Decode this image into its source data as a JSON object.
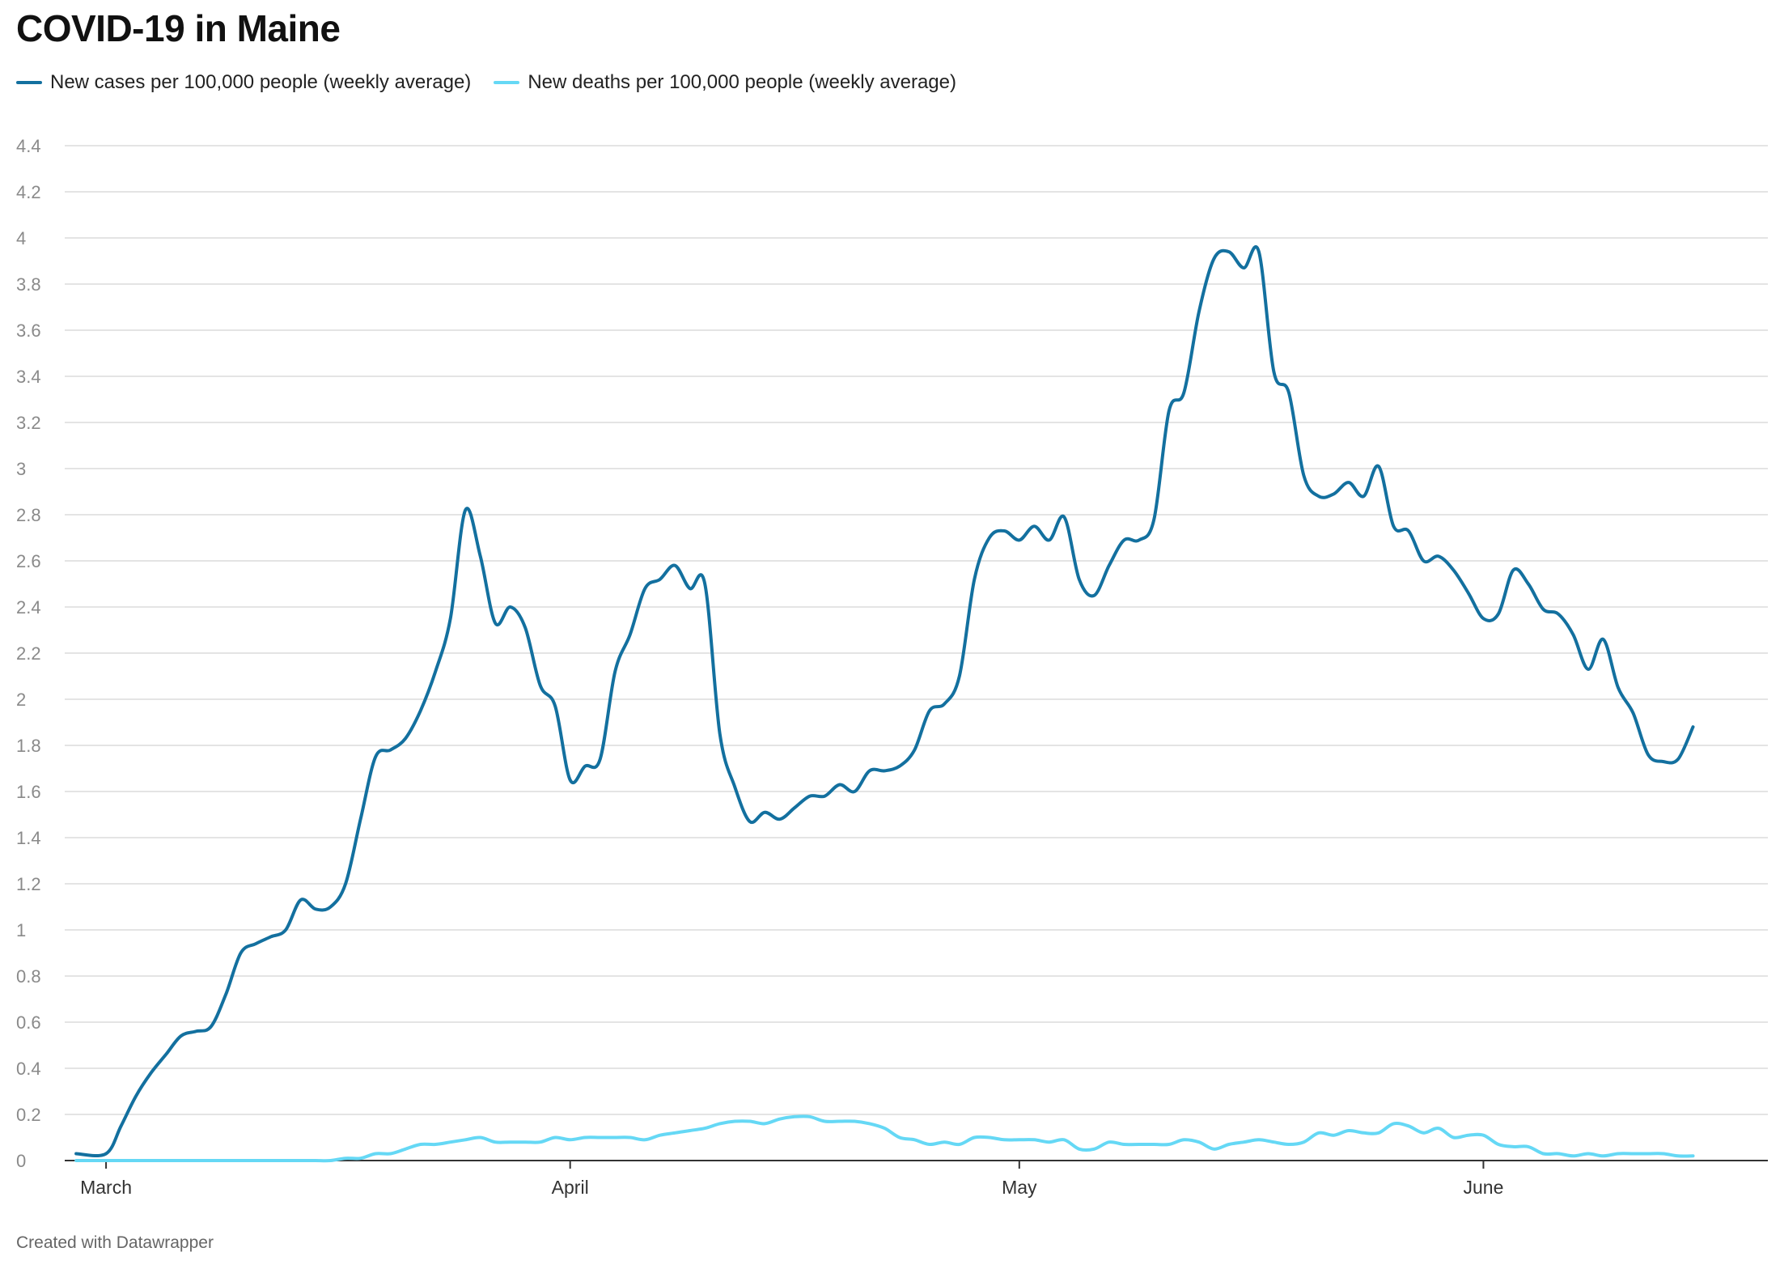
{
  "chart_data": {
    "type": "line",
    "title": "COVID-19 in Maine",
    "xlabel": "",
    "ylabel": "",
    "x_range": [
      "2020-03-01",
      "2020-06-20"
    ],
    "x_ticks": [
      {
        "date": "2020-03-01",
        "label": "March"
      },
      {
        "date": "2020-04-01",
        "label": "April"
      },
      {
        "date": "2020-05-01",
        "label": "May"
      },
      {
        "date": "2020-06-01",
        "label": "June"
      }
    ],
    "ylim": [
      0,
      4.4
    ],
    "y_ticks": [
      0,
      0.2,
      0.4,
      0.6,
      0.8,
      1,
      1.2,
      1.4,
      1.6,
      1.8,
      2,
      2.2,
      2.4,
      2.6,
      2.8,
      3,
      3.2,
      3.4,
      3.6,
      3.8,
      4,
      4.2,
      4.4
    ],
    "grid": "horizontal",
    "legend_position": "top-left",
    "series": [
      {
        "name": "New cases per 100,000 people (weekly average)",
        "color": "#13709f",
        "points": [
          [
            "2020-02-28",
            0.03
          ],
          [
            "2020-03-01",
            0.03
          ],
          [
            "2020-03-02",
            0.15
          ],
          [
            "2020-03-03",
            0.28
          ],
          [
            "2020-03-04",
            0.38
          ],
          [
            "2020-03-05",
            0.46
          ],
          [
            "2020-03-06",
            0.54
          ],
          [
            "2020-03-07",
            0.56
          ],
          [
            "2020-03-08",
            0.58
          ],
          [
            "2020-03-09",
            0.72
          ],
          [
            "2020-03-10",
            0.9
          ],
          [
            "2020-03-11",
            0.94
          ],
          [
            "2020-03-12",
            0.97
          ],
          [
            "2020-03-13",
            1.0
          ],
          [
            "2020-03-14",
            1.13
          ],
          [
            "2020-03-15",
            1.09
          ],
          [
            "2020-03-16",
            1.1
          ],
          [
            "2020-03-17",
            1.2
          ],
          [
            "2020-03-18",
            1.48
          ],
          [
            "2020-03-19",
            1.75
          ],
          [
            "2020-03-20",
            1.78
          ],
          [
            "2020-03-21",
            1.83
          ],
          [
            "2020-03-22",
            1.95
          ],
          [
            "2020-03-23",
            2.12
          ],
          [
            "2020-03-24",
            2.35
          ],
          [
            "2020-03-25",
            2.82
          ],
          [
            "2020-03-26",
            2.62
          ],
          [
            "2020-03-27",
            2.33
          ],
          [
            "2020-03-28",
            2.4
          ],
          [
            "2020-03-29",
            2.31
          ],
          [
            "2020-03-30",
            2.06
          ],
          [
            "2020-03-31",
            1.97
          ],
          [
            "2020-04-01",
            1.65
          ],
          [
            "2020-04-02",
            1.71
          ],
          [
            "2020-04-03",
            1.74
          ],
          [
            "2020-04-04",
            2.12
          ],
          [
            "2020-04-05",
            2.28
          ],
          [
            "2020-04-06",
            2.48
          ],
          [
            "2020-04-07",
            2.52
          ],
          [
            "2020-04-08",
            2.58
          ],
          [
            "2020-04-09",
            2.48
          ],
          [
            "2020-04-10",
            2.5
          ],
          [
            "2020-04-11",
            1.85
          ],
          [
            "2020-04-12",
            1.62
          ],
          [
            "2020-04-13",
            1.47
          ],
          [
            "2020-04-14",
            1.51
          ],
          [
            "2020-04-15",
            1.48
          ],
          [
            "2020-04-16",
            1.53
          ],
          [
            "2020-04-17",
            1.58
          ],
          [
            "2020-04-18",
            1.58
          ],
          [
            "2020-04-19",
            1.63
          ],
          [
            "2020-04-20",
            1.6
          ],
          [
            "2020-04-21",
            1.69
          ],
          [
            "2020-04-22",
            1.69
          ],
          [
            "2020-04-23",
            1.71
          ],
          [
            "2020-04-24",
            1.78
          ],
          [
            "2020-04-25",
            1.95
          ],
          [
            "2020-04-26",
            1.98
          ],
          [
            "2020-04-27",
            2.1
          ],
          [
            "2020-04-28",
            2.52
          ],
          [
            "2020-04-29",
            2.7
          ],
          [
            "2020-04-30",
            2.73
          ],
          [
            "2020-05-01",
            2.69
          ],
          [
            "2020-05-02",
            2.75
          ],
          [
            "2020-05-03",
            2.69
          ],
          [
            "2020-05-04",
            2.79
          ],
          [
            "2020-05-05",
            2.52
          ],
          [
            "2020-05-06",
            2.45
          ],
          [
            "2020-05-07",
            2.58
          ],
          [
            "2020-05-08",
            2.69
          ],
          [
            "2020-05-09",
            2.69
          ],
          [
            "2020-05-10",
            2.78
          ],
          [
            "2020-05-11",
            3.25
          ],
          [
            "2020-05-12",
            3.33
          ],
          [
            "2020-05-13",
            3.68
          ],
          [
            "2020-05-14",
            3.91
          ],
          [
            "2020-05-15",
            3.94
          ],
          [
            "2020-05-16",
            3.87
          ],
          [
            "2020-05-17",
            3.94
          ],
          [
            "2020-05-18",
            3.42
          ],
          [
            "2020-05-19",
            3.33
          ],
          [
            "2020-05-20",
            2.97
          ],
          [
            "2020-05-21",
            2.88
          ],
          [
            "2020-05-22",
            2.89
          ],
          [
            "2020-05-23",
            2.94
          ],
          [
            "2020-05-24",
            2.88
          ],
          [
            "2020-05-25",
            3.01
          ],
          [
            "2020-05-26",
            2.75
          ],
          [
            "2020-05-27",
            2.73
          ],
          [
            "2020-05-28",
            2.6
          ],
          [
            "2020-05-29",
            2.62
          ],
          [
            "2020-05-30",
            2.56
          ],
          [
            "2020-05-31",
            2.46
          ],
          [
            "2020-06-01",
            2.35
          ],
          [
            "2020-06-02",
            2.37
          ],
          [
            "2020-06-03",
            2.56
          ],
          [
            "2020-06-04",
            2.5
          ],
          [
            "2020-06-05",
            2.39
          ],
          [
            "2020-06-06",
            2.37
          ],
          [
            "2020-06-07",
            2.28
          ],
          [
            "2020-06-08",
            2.13
          ],
          [
            "2020-06-09",
            2.26
          ],
          [
            "2020-06-10",
            2.05
          ],
          [
            "2020-06-11",
            1.94
          ],
          [
            "2020-06-12",
            1.76
          ],
          [
            "2020-06-13",
            1.73
          ],
          [
            "2020-06-14",
            1.74
          ],
          [
            "2020-06-15",
            1.88
          ]
        ]
      },
      {
        "name": "New deaths per 100,000 people (weekly average)",
        "color": "#65d8f5",
        "points": [
          [
            "2020-02-28",
            0.0
          ],
          [
            "2020-03-01",
            0.0
          ],
          [
            "2020-03-02",
            0.0
          ],
          [
            "2020-03-03",
            0.0
          ],
          [
            "2020-03-04",
            0.0
          ],
          [
            "2020-03-05",
            0.0
          ],
          [
            "2020-03-06",
            0.0
          ],
          [
            "2020-03-07",
            0.0
          ],
          [
            "2020-03-08",
            0.0
          ],
          [
            "2020-03-09",
            0.0
          ],
          [
            "2020-03-10",
            0.0
          ],
          [
            "2020-03-11",
            0.0
          ],
          [
            "2020-03-12",
            0.0
          ],
          [
            "2020-03-13",
            0.0
          ],
          [
            "2020-03-14",
            0.0
          ],
          [
            "2020-03-15",
            0.0
          ],
          [
            "2020-03-16",
            0.0
          ],
          [
            "2020-03-17",
            0.01
          ],
          [
            "2020-03-18",
            0.01
          ],
          [
            "2020-03-19",
            0.03
          ],
          [
            "2020-03-20",
            0.03
          ],
          [
            "2020-03-21",
            0.05
          ],
          [
            "2020-03-22",
            0.07
          ],
          [
            "2020-03-23",
            0.07
          ],
          [
            "2020-03-24",
            0.08
          ],
          [
            "2020-03-25",
            0.09
          ],
          [
            "2020-03-26",
            0.1
          ],
          [
            "2020-03-27",
            0.08
          ],
          [
            "2020-03-28",
            0.08
          ],
          [
            "2020-03-29",
            0.08
          ],
          [
            "2020-03-30",
            0.08
          ],
          [
            "2020-03-31",
            0.1
          ],
          [
            "2020-04-01",
            0.09
          ],
          [
            "2020-04-02",
            0.1
          ],
          [
            "2020-04-03",
            0.1
          ],
          [
            "2020-04-04",
            0.1
          ],
          [
            "2020-04-05",
            0.1
          ],
          [
            "2020-04-06",
            0.09
          ],
          [
            "2020-04-07",
            0.11
          ],
          [
            "2020-04-08",
            0.12
          ],
          [
            "2020-04-09",
            0.13
          ],
          [
            "2020-04-10",
            0.14
          ],
          [
            "2020-04-11",
            0.16
          ],
          [
            "2020-04-12",
            0.17
          ],
          [
            "2020-04-13",
            0.17
          ],
          [
            "2020-04-14",
            0.16
          ],
          [
            "2020-04-15",
            0.18
          ],
          [
            "2020-04-16",
            0.19
          ],
          [
            "2020-04-17",
            0.19
          ],
          [
            "2020-04-18",
            0.17
          ],
          [
            "2020-04-19",
            0.17
          ],
          [
            "2020-04-20",
            0.17
          ],
          [
            "2020-04-21",
            0.16
          ],
          [
            "2020-04-22",
            0.14
          ],
          [
            "2020-04-23",
            0.1
          ],
          [
            "2020-04-24",
            0.09
          ],
          [
            "2020-04-25",
            0.07
          ],
          [
            "2020-04-26",
            0.08
          ],
          [
            "2020-04-27",
            0.07
          ],
          [
            "2020-04-28",
            0.1
          ],
          [
            "2020-04-29",
            0.1
          ],
          [
            "2020-04-30",
            0.09
          ],
          [
            "2020-05-01",
            0.09
          ],
          [
            "2020-05-02",
            0.09
          ],
          [
            "2020-05-03",
            0.08
          ],
          [
            "2020-05-04",
            0.09
          ],
          [
            "2020-05-05",
            0.05
          ],
          [
            "2020-05-06",
            0.05
          ],
          [
            "2020-05-07",
            0.08
          ],
          [
            "2020-05-08",
            0.07
          ],
          [
            "2020-05-09",
            0.07
          ],
          [
            "2020-05-10",
            0.07
          ],
          [
            "2020-05-11",
            0.07
          ],
          [
            "2020-05-12",
            0.09
          ],
          [
            "2020-05-13",
            0.08
          ],
          [
            "2020-05-14",
            0.05
          ],
          [
            "2020-05-15",
            0.07
          ],
          [
            "2020-05-16",
            0.08
          ],
          [
            "2020-05-17",
            0.09
          ],
          [
            "2020-05-18",
            0.08
          ],
          [
            "2020-05-19",
            0.07
          ],
          [
            "2020-05-20",
            0.08
          ],
          [
            "2020-05-21",
            0.12
          ],
          [
            "2020-05-22",
            0.11
          ],
          [
            "2020-05-23",
            0.13
          ],
          [
            "2020-05-24",
            0.12
          ],
          [
            "2020-05-25",
            0.12
          ],
          [
            "2020-05-26",
            0.16
          ],
          [
            "2020-05-27",
            0.15
          ],
          [
            "2020-05-28",
            0.12
          ],
          [
            "2020-05-29",
            0.14
          ],
          [
            "2020-05-30",
            0.1
          ],
          [
            "2020-05-31",
            0.11
          ],
          [
            "2020-06-01",
            0.11
          ],
          [
            "2020-06-02",
            0.07
          ],
          [
            "2020-06-03",
            0.06
          ],
          [
            "2020-06-04",
            0.06
          ],
          [
            "2020-06-05",
            0.03
          ],
          [
            "2020-06-06",
            0.03
          ],
          [
            "2020-06-07",
            0.02
          ],
          [
            "2020-06-08",
            0.03
          ],
          [
            "2020-06-09",
            0.02
          ],
          [
            "2020-06-10",
            0.03
          ],
          [
            "2020-06-11",
            0.03
          ],
          [
            "2020-06-12",
            0.03
          ],
          [
            "2020-06-13",
            0.03
          ],
          [
            "2020-06-14",
            0.02
          ],
          [
            "2020-06-15",
            0.02
          ]
        ]
      }
    ]
  },
  "footer": {
    "credit": "Created with Datawrapper"
  }
}
